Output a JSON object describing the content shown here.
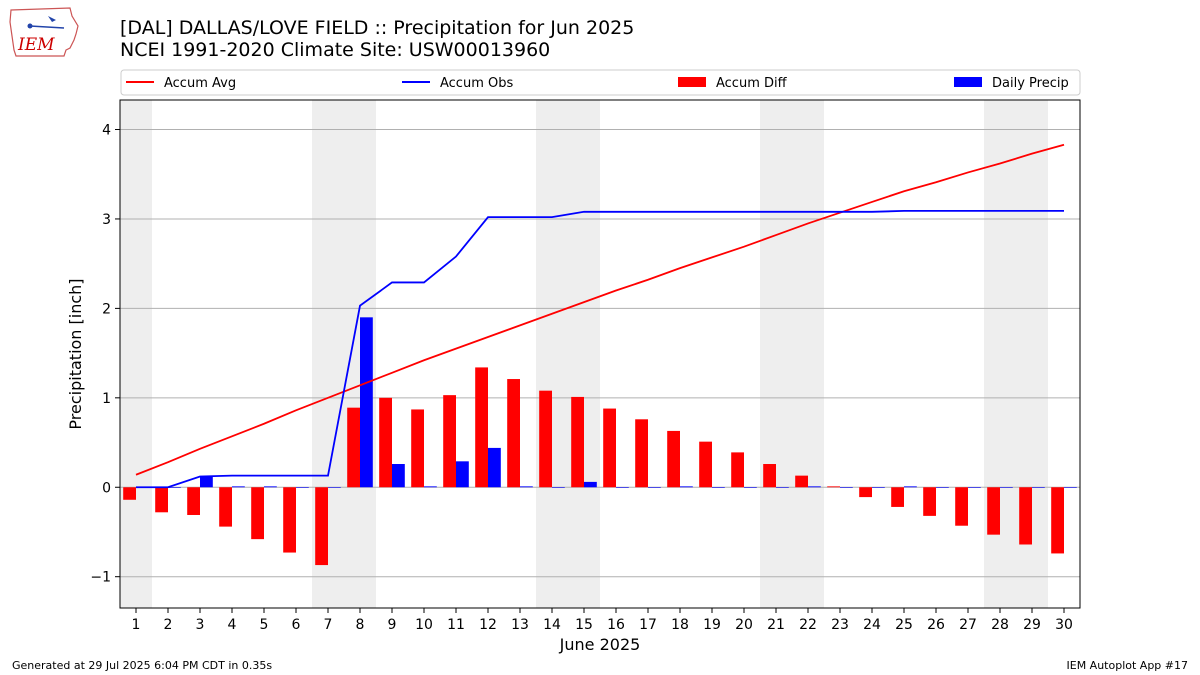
{
  "header": {
    "title_line1": "[DAL] DALLAS/LOVE FIELD :: Precipitation for Jun 2025",
    "title_line2": "NCEI 1991-2020 Climate Site: USW00013960",
    "logo_text": "IEM"
  },
  "footer": {
    "left": "Generated at 29 Jul 2025 6:04 PM CDT in 0.35s",
    "right": "IEM Autoplot App #17"
  },
  "colors": {
    "accum_avg": "#ff0000",
    "accum_obs": "#0000ff",
    "accum_diff": "#ff0000",
    "daily_precip": "#0000ff",
    "weekend_band": "#eeeeee",
    "grid": "#b0b0b0",
    "logo": "#cc0000"
  },
  "chart_data": {
    "type": "bar",
    "xlabel": "June 2025",
    "ylabel": "Precipitation [inch]",
    "ylim": [
      -1.35,
      4.33
    ],
    "yticks": [
      -1,
      0,
      1,
      2,
      3,
      4
    ],
    "ytick_labels": [
      "−1",
      "0",
      "1",
      "2",
      "3",
      "4"
    ],
    "grid": "horizontal",
    "legend_position": "top",
    "legend": [
      "Accum Avg",
      "Accum Obs",
      "Accum Diff",
      "Daily Precip"
    ],
    "x": [
      1,
      2,
      3,
      4,
      5,
      6,
      7,
      8,
      9,
      10,
      11,
      12,
      13,
      14,
      15,
      16,
      17,
      18,
      19,
      20,
      21,
      22,
      23,
      24,
      25,
      26,
      27,
      28,
      29,
      30
    ],
    "weekend_days": [
      1,
      7,
      8,
      14,
      15,
      21,
      22,
      28,
      29
    ],
    "series": [
      {
        "name": "Accum Avg",
        "kind": "line",
        "values": [
          0.14,
          0.28,
          0.43,
          0.57,
          0.71,
          0.86,
          1.0,
          1.14,
          1.28,
          1.42,
          1.55,
          1.68,
          1.81,
          1.94,
          2.07,
          2.2,
          2.32,
          2.45,
          2.57,
          2.69,
          2.82,
          2.95,
          3.07,
          3.19,
          3.31,
          3.41,
          3.52,
          3.62,
          3.73,
          3.83
        ]
      },
      {
        "name": "Accum Obs",
        "kind": "line",
        "values": [
          0.0,
          0.0,
          0.12,
          0.13,
          0.13,
          0.13,
          0.13,
          2.03,
          2.29,
          2.29,
          2.58,
          3.02,
          3.02,
          3.02,
          3.08,
          3.08,
          3.08,
          3.08,
          3.08,
          3.08,
          3.08,
          3.08,
          3.08,
          3.08,
          3.09,
          3.09,
          3.09,
          3.09,
          3.09,
          3.09
        ]
      },
      {
        "name": "Accum Diff",
        "kind": "bar",
        "offset": -0.2,
        "values": [
          -0.14,
          -0.28,
          -0.31,
          -0.44,
          -0.58,
          -0.73,
          -0.87,
          0.89,
          1.0,
          0.87,
          1.03,
          1.34,
          1.21,
          1.08,
          1.01,
          0.88,
          0.76,
          0.63,
          0.51,
          0.39,
          0.26,
          0.13,
          0.01,
          -0.11,
          -0.22,
          -0.32,
          -0.43,
          -0.53,
          -0.64,
          -0.74
        ]
      },
      {
        "name": "Daily Precip",
        "kind": "bar",
        "offset": 0.2,
        "values": [
          0.0,
          0.0,
          0.12,
          0.01,
          0.01,
          0.0,
          0.0,
          1.9,
          0.26,
          0.01,
          0.29,
          0.44,
          0.01,
          0.0,
          0.06,
          0.0,
          0.0,
          0.01,
          0.0,
          0.0,
          0.0,
          0.01,
          0.0,
          0.0,
          0.01,
          0.0,
          0.0,
          0.0,
          0.0,
          0.0
        ]
      }
    ]
  }
}
